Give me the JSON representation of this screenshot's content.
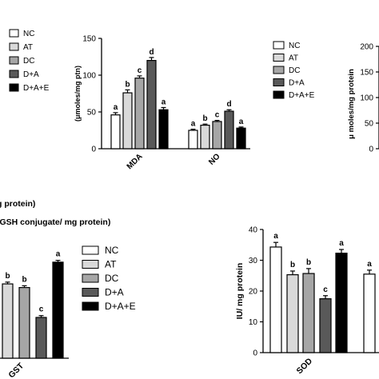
{
  "colors": {
    "NC": "#ffffff",
    "AT": "#d9d9d9",
    "DC": "#a6a6a6",
    "D+A": "#595959",
    "D+A+E": "#000000"
  },
  "chart_data": [
    {
      "type": "bar",
      "ylabel": "(μmoles/mg ptn)",
      "ylim": [
        0,
        150
      ],
      "yticks": [
        0,
        50,
        100,
        150
      ],
      "categories": [
        "MDA",
        "NO"
      ],
      "legend": [
        "NC",
        "AT",
        "DC",
        "D+A",
        "D+A+E"
      ],
      "legend_position": "right",
      "series": [
        {
          "name": "NC",
          "values": [
            46,
            25
          ],
          "err": [
            3,
            1.5
          ],
          "letters": [
            "a",
            "a"
          ]
        },
        {
          "name": "AT",
          "values": [
            76,
            32
          ],
          "err": [
            4,
            1.5
          ],
          "letters": [
            "b",
            "b"
          ]
        },
        {
          "name": "DC",
          "values": [
            96,
            37
          ],
          "err": [
            3,
            1.5
          ],
          "letters": [
            "c",
            "c"
          ]
        },
        {
          "name": "D+A",
          "values": [
            120,
            51
          ],
          "err": [
            4,
            2
          ],
          "letters": [
            "d",
            "d"
          ]
        },
        {
          "name": "D+A+E",
          "values": [
            53,
            28
          ],
          "err": [
            3,
            1.5
          ],
          "letters": [
            "a",
            "a"
          ]
        }
      ]
    },
    {
      "type": "bar",
      "ylabel": "μ moles/mg protein",
      "yticks": [
        0,
        50,
        100,
        150,
        200
      ],
      "categories": []
    },
    {
      "type": "bar",
      "ylabel_lines": [
        "g protein)",
        "-GSH conjugate/ mg protein)"
      ],
      "categories": [
        "GST"
      ],
      "legend": [
        "NC",
        "AT",
        "DC",
        "D+A",
        "D+A+E"
      ],
      "legend_position": "right",
      "series": [
        {
          "name": "AT",
          "values": [
            0.82
          ],
          "err": [
            0.02
          ],
          "letters": [
            "b"
          ]
        },
        {
          "name": "DC",
          "values": [
            0.78
          ],
          "err": [
            0.02
          ],
          "letters": [
            "b"
          ]
        },
        {
          "name": "D+A",
          "values": [
            0.45
          ],
          "err": [
            0.02
          ],
          "letters": [
            "c"
          ]
        },
        {
          "name": "D+A+E",
          "values": [
            1.06
          ],
          "err": [
            0.02
          ],
          "letters": [
            "a"
          ]
        }
      ]
    },
    {
      "type": "bar",
      "ylabel": "IU/ mg protein",
      "ylim": [
        0,
        40
      ],
      "yticks": [
        0,
        10,
        20,
        30,
        40
      ],
      "categories": [
        "SOD"
      ],
      "series": [
        {
          "name": "NC",
          "values": [
            34.3
          ],
          "err": [
            1.5
          ],
          "letters": [
            "a"
          ]
        },
        {
          "name": "AT",
          "values": [
            25.3
          ],
          "err": [
            1.2
          ],
          "letters": [
            "b"
          ]
        },
        {
          "name": "DC",
          "values": [
            25.7
          ],
          "err": [
            1.6
          ],
          "letters": [
            "b"
          ]
        },
        {
          "name": "D+A",
          "values": [
            17.5
          ],
          "err": [
            1.0
          ],
          "letters": [
            "c"
          ]
        },
        {
          "name": "D+A+E",
          "values": [
            32.3
          ],
          "err": [
            1.2
          ],
          "letters": [
            "a"
          ]
        }
      ],
      "extra_next_group": {
        "values": [
          25.5
        ],
        "letters": [
          "a"
        ]
      }
    }
  ]
}
